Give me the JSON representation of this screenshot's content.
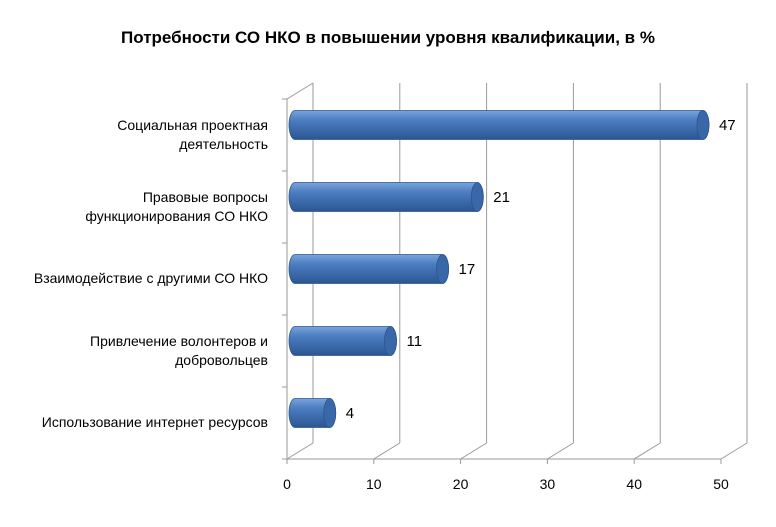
{
  "chart_data": {
    "type": "bar",
    "orientation": "horizontal",
    "style": "3d-cylinder",
    "title": "Потребности  СО НКО в повышении уровня квалификации, в %",
    "categories": [
      "Социальная проектная\nдеятельность",
      "Правовые вопросы\nфункционирования СО НКО",
      "Взаимодействие с другими СО НКО",
      "Привлечение волонтеров и\nдобровольцев",
      "Использование интернет ресурсов"
    ],
    "values": [
      47,
      21,
      17,
      11,
      4
    ],
    "xlim": [
      0,
      50
    ],
    "xticks": [
      0,
      10,
      20,
      30,
      40,
      50
    ],
    "grid": true,
    "legend": "none",
    "colors": {
      "bar_light": "#7aa3d8",
      "bar_mid": "#4a7cc0",
      "bar_dark": "#2b5591",
      "bar_cap": "#3a67a8",
      "grid": "#9a9a9a"
    }
  }
}
